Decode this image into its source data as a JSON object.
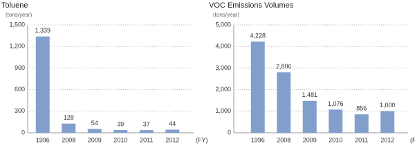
{
  "chart_data": [
    {
      "type": "bar",
      "title": "Toluene",
      "y_label": "(tons/year)",
      "x_label": "(FY)",
      "categories": [
        "1996",
        "2008",
        "2009",
        "2010",
        "2011",
        "2012"
      ],
      "values": [
        1339,
        128,
        54,
        39,
        37,
        44
      ],
      "value_labels": [
        "1,339",
        "128",
        "54",
        "39",
        "37",
        "44"
      ],
      "color": "#829fcc",
      "ylim": [
        0,
        1500
      ],
      "yticks": [
        0,
        300,
        600,
        900,
        {
          "value": 1200,
          "label": "1,200"
        },
        {
          "value": 1500,
          "label": "1,500"
        }
      ],
      "grid": true
    },
    {
      "type": "bar",
      "title": "VOC Emissions Volumes",
      "y_label": "(tons/year)",
      "x_label": "(FY)",
      "categories": [
        "1996",
        "2008",
        "2009",
        "2010",
        "2011",
        "2012"
      ],
      "values": [
        4228,
        2806,
        1481,
        1076,
        856,
        1000
      ],
      "value_labels": [
        "4,228",
        "2,806",
        "1,481",
        "1,076",
        "856",
        "1,000"
      ],
      "color": "#829fcc",
      "ylim": [
        0,
        5000
      ],
      "yticks": [
        0,
        {
          "value": 1000,
          "label": "1,000"
        },
        {
          "value": 2000,
          "label": "2,000"
        },
        {
          "value": 3000,
          "label": "3,000"
        },
        {
          "value": 4000,
          "label": "4,000"
        },
        {
          "value": 5000,
          "label": "5,000"
        }
      ],
      "grid": true
    }
  ]
}
